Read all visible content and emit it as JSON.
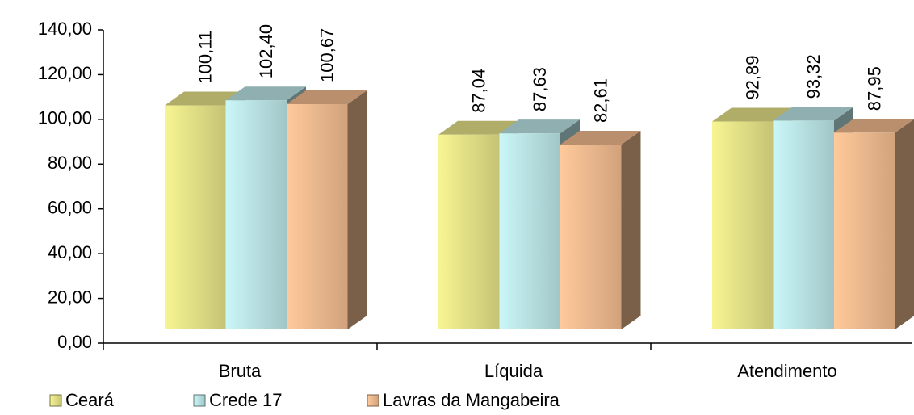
{
  "chart_data": {
    "type": "bar3d",
    "categories": [
      "Bruta",
      "Líquida",
      "Atendimento"
    ],
    "series": [
      {
        "name": "Ceará",
        "color": "#e9e78a",
        "values": [
          100.11,
          87.04,
          92.89
        ],
        "value_labels": [
          "100,11",
          "87,04",
          "92,89"
        ]
      },
      {
        "name": "Crede 17",
        "color": "#bfe9ea",
        "values": [
          102.4,
          87.63,
          93.32
        ],
        "value_labels": [
          "102,40",
          "87,63",
          "93,32"
        ]
      },
      {
        "name": "Lavras da Mangabeira",
        "color": "#f6bf92",
        "values": [
          100.67,
          82.61,
          87.95
        ],
        "value_labels": [
          "100,67",
          "82,61",
          "87,95"
        ]
      }
    ],
    "ylim": [
      0,
      140
    ],
    "yticks": [
      {
        "value": 0,
        "label": "0,00"
      },
      {
        "value": 20,
        "label": "20,00"
      },
      {
        "value": 40,
        "label": "40,00"
      },
      {
        "value": 60,
        "label": "60,00"
      },
      {
        "value": 80,
        "label": "80,00"
      },
      {
        "value": 100,
        "label": "100,00"
      },
      {
        "value": 120,
        "label": "120,00"
      },
      {
        "value": 140,
        "label": "140,00"
      }
    ],
    "legend": "bottom"
  }
}
